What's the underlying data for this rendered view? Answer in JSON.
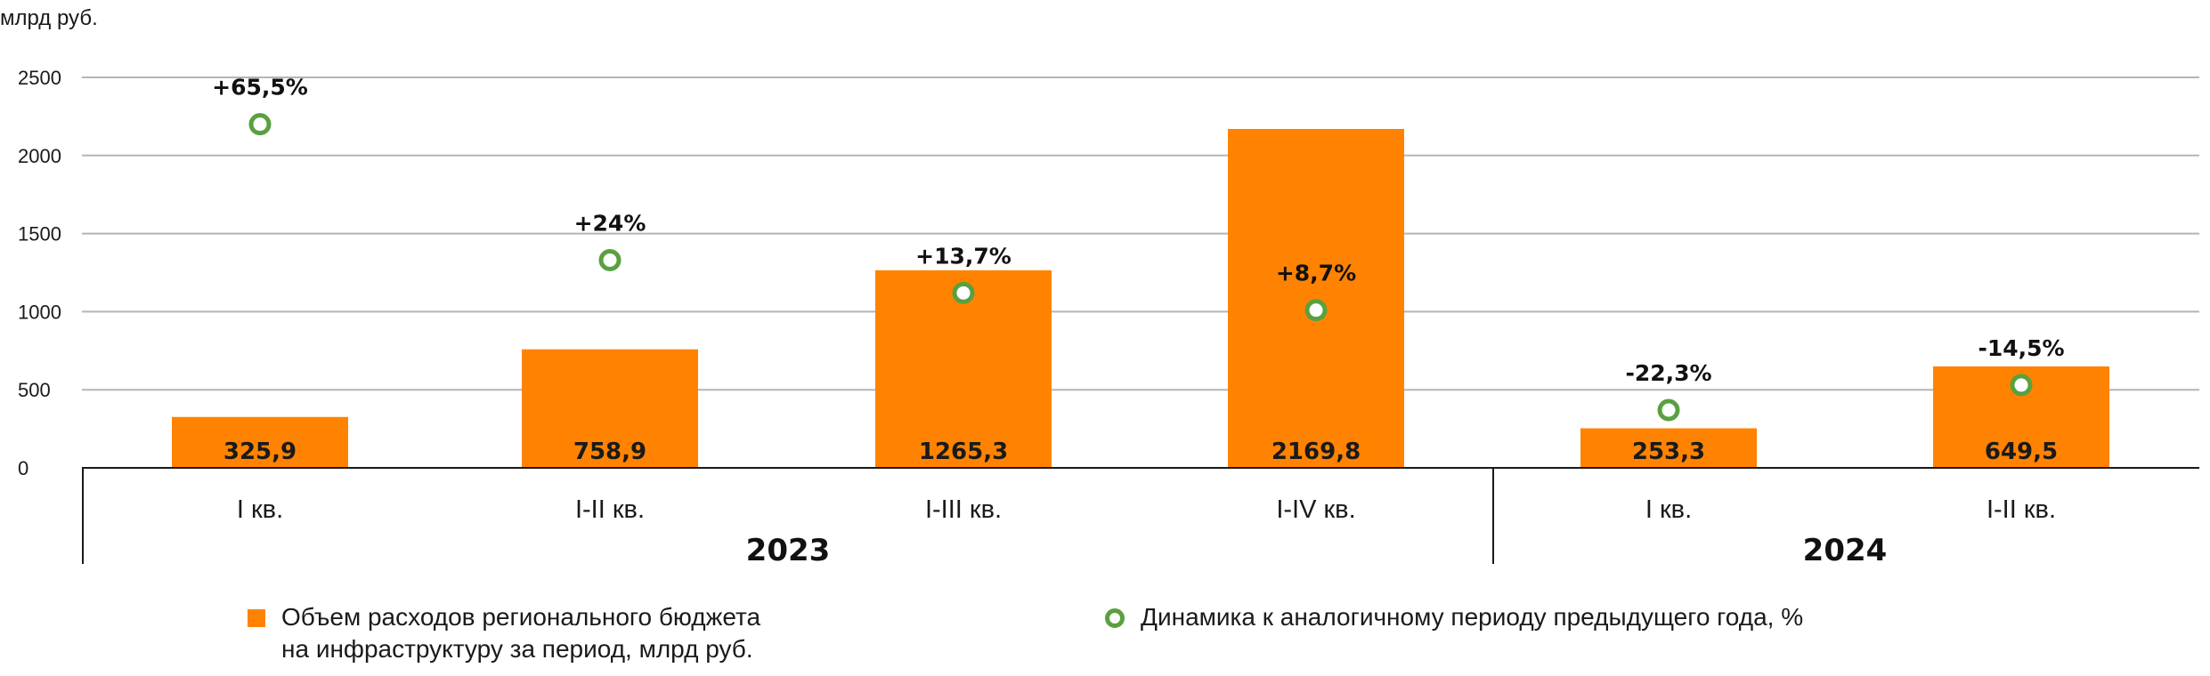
{
  "chart_data": {
    "type": "bar",
    "unit_label": "млрд руб.",
    "ylim": [
      0,
      2500
    ],
    "yticks": [
      0,
      500,
      1000,
      1500,
      2000,
      2500
    ],
    "grid": true,
    "categories": [
      "I кв.",
      "I-II кв.",
      "I-III кв.",
      "I-IV кв.",
      "I кв.",
      "I-II кв."
    ],
    "groups": [
      {
        "label": "2023",
        "categories": [
          0,
          1,
          2,
          3
        ]
      },
      {
        "label": "2024",
        "categories": [
          4,
          5
        ]
      }
    ],
    "series": [
      {
        "name": "Объем расходов регионального бюджета на инфраструктуру за период, млрд руб.",
        "type": "bar",
        "color": "#ff8300",
        "values": [
          325.9,
          758.9,
          1265.3,
          2169.8,
          253.3,
          649.5
        ],
        "labels": [
          "325,9",
          "758,9",
          "1265,3",
          "2169,8",
          "253,3",
          "649,5"
        ]
      },
      {
        "name": "Динамика к аналогичному периоду предыдущего года, %",
        "type": "scatter",
        "color": "#5aa040",
        "values": [
          65.5,
          24,
          13.7,
          8.7,
          -22.3,
          -14.5
        ],
        "plot_positions": [
          2200,
          1330,
          1120,
          1010,
          370,
          530
        ],
        "labels": [
          "+65,5%",
          "+24%",
          "+13,7%",
          "+8,7%",
          "-22,3%",
          "-14,5%"
        ]
      }
    ],
    "legend": {
      "placement": "bottom",
      "bar_line1": "Объем расходов регионального бюджета",
      "bar_line2": "на инфраструктуру за период, млрд руб.",
      "marker_text": "Динамика к аналогичному периоду предыдущего года, %"
    }
  }
}
